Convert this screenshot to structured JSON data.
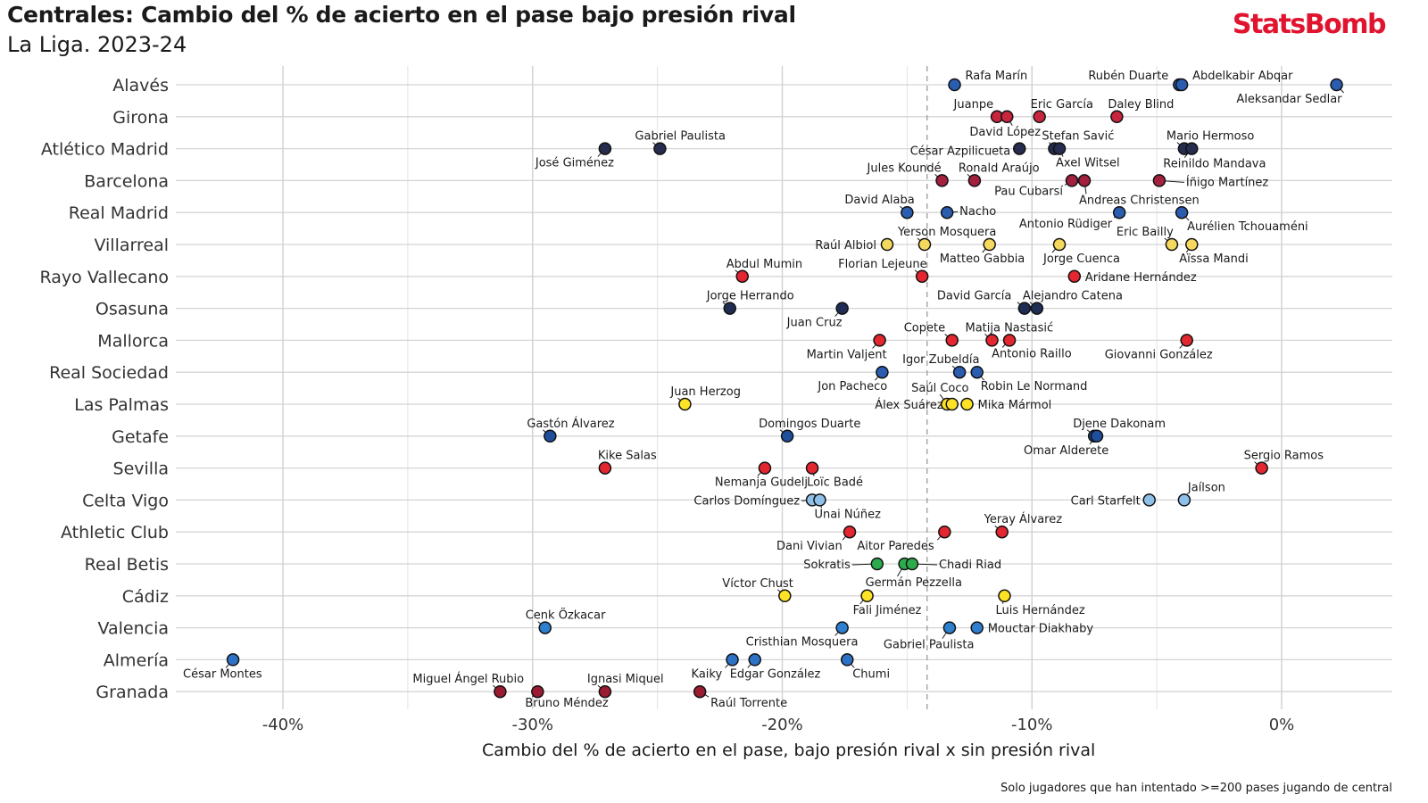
{
  "title": "Centrales: Cambio del % de acierto en el pase bajo presión rival",
  "subtitle": "La Liga. 2023-24",
  "logo": "StatsBomb",
  "footnote": "Solo jugadores que han intentado >=200 pases jugando de central",
  "chart_data": {
    "type": "scatter",
    "title": "Centrales: Cambio del % de acierto en el pase bajo presión rival",
    "subtitle": "La Liga. 2023-24",
    "xlabel": "Cambio del % de acierto en el pase, bajo presión rival x sin presión rival",
    "ylabel": "",
    "xlim": [
      -44,
      4.5
    ],
    "xticks": [
      -40,
      -30,
      -20,
      -10,
      0
    ],
    "xtick_labels": [
      "-40%",
      "-30%",
      "-20%",
      "-10%",
      "0%"
    ],
    "reference_line": {
      "x": -14.2,
      "style": "dashed"
    },
    "grid": true,
    "teams": [
      "Alavés",
      "Girona",
      "Atlético Madrid",
      "Barcelona",
      "Real Madrid",
      "Villarreal",
      "Rayo Vallecano",
      "Osasuna",
      "Mallorca",
      "Real Sociedad",
      "Las Palmas",
      "Getafe",
      "Sevilla",
      "Celta Vigo",
      "Athletic Club",
      "Real Betis",
      "Cádiz",
      "Valencia",
      "Almería",
      "Granada"
    ],
    "team_colors": {
      "Alavés": "#2a5db0",
      "Girona": "#c8253e",
      "Atlético Madrid": "#262c4e",
      "Barcelona": "#a3203f",
      "Real Madrid": "#2a5db0",
      "Villarreal": "#f5d95e",
      "Rayo Vallecano": "#e3262f",
      "Osasuna": "#1f2d55",
      "Mallorca": "#e3262f",
      "Real Sociedad": "#2a5db0",
      "Las Palmas": "#fde225",
      "Getafe": "#1f4e9c",
      "Sevilla": "#e3262f",
      "Celta Vigo": "#8ec0ea",
      "Athletic Club": "#e3262f",
      "Real Betis": "#2bab4c",
      "Cádiz": "#fde225",
      "Valencia": "#2e7fcf",
      "Almería": "#2e72c7",
      "Granada": "#9b1c31"
    },
    "players": [
      {
        "team": "Alavés",
        "name": "Rafa Marín",
        "x": -13.1
      },
      {
        "team": "Alavés",
        "name": "Rubén Duarte",
        "x": -4.1
      },
      {
        "team": "Alavés",
        "name": "Abdelkabir Abqar",
        "x": -4.0
      },
      {
        "team": "Alavés",
        "name": "Aleksandar Sedlar",
        "x": 2.2
      },
      {
        "team": "Girona",
        "name": "Juanpe",
        "x": -11.4
      },
      {
        "team": "Girona",
        "name": "David López",
        "x": -11.0
      },
      {
        "team": "Girona",
        "name": "Eric García",
        "x": -9.7
      },
      {
        "team": "Girona",
        "name": "Daley Blind",
        "x": -6.6
      },
      {
        "team": "Atlético Madrid",
        "name": "José Giménez",
        "x": -27.1
      },
      {
        "team": "Atlético Madrid",
        "name": "Gabriel Paulista",
        "x": -24.9
      },
      {
        "team": "Atlético Madrid",
        "name": "César Azpilicueta",
        "x": -10.5
      },
      {
        "team": "Atlético Madrid",
        "name": "Stefan Savić",
        "x": -9.1
      },
      {
        "team": "Atlético Madrid",
        "name": "Axel Witsel",
        "x": -8.9
      },
      {
        "team": "Atlético Madrid",
        "name": "Mario Hermoso",
        "x": -3.9
      },
      {
        "team": "Atlético Madrid",
        "name": "Reinildo Mandava",
        "x": -3.6
      },
      {
        "team": "Barcelona",
        "name": "Jules Koundé",
        "x": -13.6
      },
      {
        "team": "Barcelona",
        "name": "Ronald Araújo",
        "x": -12.3
      },
      {
        "team": "Barcelona",
        "name": "Pau Cubarsí",
        "x": -8.4
      },
      {
        "team": "Barcelona",
        "name": "Andreas Christensen",
        "x": -7.9
      },
      {
        "team": "Barcelona",
        "name": "Íñigo Martínez",
        "x": -4.9
      },
      {
        "team": "Real Madrid",
        "name": "David Alaba",
        "x": -15.0
      },
      {
        "team": "Real Madrid",
        "name": "Nacho",
        "x": -13.4
      },
      {
        "team": "Real Madrid",
        "name": "Antonio Rüdiger",
        "x": -6.5
      },
      {
        "team": "Real Madrid",
        "name": "Aurélien Tchouaméni",
        "x": -4.0
      },
      {
        "team": "Villarreal",
        "name": "Raúl Albiol",
        "x": -15.8
      },
      {
        "team": "Villarreal",
        "name": "Yerson Mosquera",
        "x": -14.3
      },
      {
        "team": "Villarreal",
        "name": "Matteo Gabbia",
        "x": -11.7
      },
      {
        "team": "Villarreal",
        "name": "Jorge Cuenca",
        "x": -8.9
      },
      {
        "team": "Villarreal",
        "name": "Eric Bailly",
        "x": -4.4
      },
      {
        "team": "Villarreal",
        "name": "Aïssa Mandi",
        "x": -3.6
      },
      {
        "team": "Rayo Vallecano",
        "name": "Abdul Mumin",
        "x": -21.6
      },
      {
        "team": "Rayo Vallecano",
        "name": "Florian Lejeune",
        "x": -14.4
      },
      {
        "team": "Rayo Vallecano",
        "name": "Aridane Hernández",
        "x": -8.3
      },
      {
        "team": "Osasuna",
        "name": "Jorge Herrando",
        "x": -22.1
      },
      {
        "team": "Osasuna",
        "name": "Juan Cruz",
        "x": -17.6
      },
      {
        "team": "Osasuna",
        "name": "David García",
        "x": -10.3
      },
      {
        "team": "Osasuna",
        "name": "Alejandro Catena",
        "x": -9.8
      },
      {
        "team": "Mallorca",
        "name": "Martin Valjent",
        "x": -16.1
      },
      {
        "team": "Mallorca",
        "name": "Copete",
        "x": -13.2
      },
      {
        "team": "Mallorca",
        "name": "Matija Nastasić",
        "x": -11.6
      },
      {
        "team": "Mallorca",
        "name": "Antonio Raillo",
        "x": -10.9
      },
      {
        "team": "Mallorca",
        "name": "Giovanni González",
        "x": -3.8
      },
      {
        "team": "Real Sociedad",
        "name": "Jon Pacheco",
        "x": -16.0
      },
      {
        "team": "Real Sociedad",
        "name": "Igor Zubeldía",
        "x": -12.9
      },
      {
        "team": "Real Sociedad",
        "name": "Robin Le Normand",
        "x": -12.2
      },
      {
        "team": "Las Palmas",
        "name": "Juan Herzog",
        "x": -23.9
      },
      {
        "team": "Las Palmas",
        "name": "Saúl Coco",
        "x": -13.4
      },
      {
        "team": "Las Palmas",
        "name": "Álex Suárez",
        "x": -13.2
      },
      {
        "team": "Las Palmas",
        "name": "Mika Mármol",
        "x": -12.6
      },
      {
        "team": "Getafe",
        "name": "Gastón Álvarez",
        "x": -29.3
      },
      {
        "team": "Getafe",
        "name": "Domingos Duarte",
        "x": -19.8
      },
      {
        "team": "Getafe",
        "name": "Djene Dakonam",
        "x": -7.5
      },
      {
        "team": "Getafe",
        "name": "Omar Alderete",
        "x": -7.4
      },
      {
        "team": "Sevilla",
        "name": "Kike Salas",
        "x": -27.1
      },
      {
        "team": "Sevilla",
        "name": "Nemanja Gudelj",
        "x": -20.7
      },
      {
        "team": "Sevilla",
        "name": "Loïc Badé",
        "x": -18.8
      },
      {
        "team": "Sevilla",
        "name": "Sergio Ramos",
        "x": -0.8
      },
      {
        "team": "Celta Vigo",
        "name": "Carlos Domínguez",
        "x": -18.8
      },
      {
        "team": "Celta Vigo",
        "name": "Unai Núñez",
        "x": -18.5
      },
      {
        "team": "Celta Vigo",
        "name": "Carl Starfelt",
        "x": -5.3
      },
      {
        "team": "Celta Vigo",
        "name": "Jaílson",
        "x": -3.9
      },
      {
        "team": "Athletic Club",
        "name": "Dani Vivian",
        "x": -17.3
      },
      {
        "team": "Athletic Club",
        "name": "Aitor Paredes",
        "x": -13.5
      },
      {
        "team": "Athletic Club",
        "name": "Yeray Álvarez",
        "x": -11.2
      },
      {
        "team": "Real Betis",
        "name": "Sokratis",
        "x": -16.2
      },
      {
        "team": "Real Betis",
        "name": "Germán Pezzella",
        "x": -15.1
      },
      {
        "team": "Real Betis",
        "name": "Chadi Riad",
        "x": -14.8
      },
      {
        "team": "Cádiz",
        "name": "Víctor Chust",
        "x": -19.9
      },
      {
        "team": "Cádiz",
        "name": "Fali Jiménez",
        "x": -16.6
      },
      {
        "team": "Cádiz",
        "name": "Luis Hernández",
        "x": -11.1
      },
      {
        "team": "Valencia",
        "name": "Cenk Özkacar",
        "x": -29.5
      },
      {
        "team": "Valencia",
        "name": "Cristhian Mosquera",
        "x": -17.6
      },
      {
        "team": "Valencia",
        "name": "Gabriel Paulista",
        "x": -13.3
      },
      {
        "team": "Valencia",
        "name": "Mouctar Diakhaby",
        "x": -12.2
      },
      {
        "team": "Almería",
        "name": "César Montes",
        "x": -42.0
      },
      {
        "team": "Almería",
        "name": "Kaiky",
        "x": -22.0
      },
      {
        "team": "Almería",
        "name": "Edgar González",
        "x": -21.1
      },
      {
        "team": "Almería",
        "name": "Chumi",
        "x": -17.4
      },
      {
        "team": "Granada",
        "name": "Miguel Ángel Rubio",
        "x": -31.3
      },
      {
        "team": "Granada",
        "name": "Bruno Méndez",
        "x": -29.8
      },
      {
        "team": "Granada",
        "name": "Ignasi Miquel",
        "x": -27.1
      },
      {
        "team": "Granada",
        "name": "Raúl Torrente",
        "x": -23.3
      }
    ]
  }
}
